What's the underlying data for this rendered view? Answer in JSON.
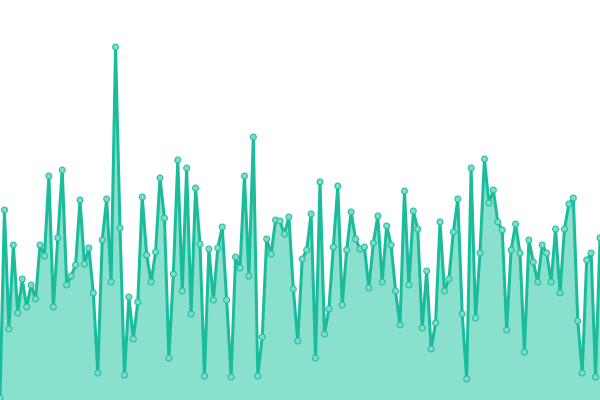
{
  "chart_data": {
    "type": "area",
    "title": "",
    "xlabel": "",
    "ylabel": "",
    "x": [
      0,
      1,
      2,
      3,
      4,
      5,
      6,
      7,
      8,
      9,
      10,
      11,
      12,
      13,
      14,
      15,
      16,
      17,
      18,
      19,
      20,
      21,
      22,
      23,
      24,
      25,
      26,
      27,
      28,
      29,
      30,
      31,
      32,
      33,
      34,
      35,
      36,
      37,
      38,
      39,
      40,
      41,
      42,
      43,
      44,
      45,
      46,
      47,
      48,
      49,
      50,
      51,
      52,
      53,
      54,
      55,
      56,
      57,
      58,
      59,
      60,
      61,
      62,
      63,
      64,
      65,
      66,
      67,
      68,
      69,
      70,
      71,
      72,
      73,
      74,
      75,
      76,
      77,
      78,
      79,
      80,
      81,
      82,
      83,
      84,
      85,
      86,
      87,
      88,
      89,
      90,
      91,
      92,
      93,
      94,
      95,
      96,
      97,
      98,
      99,
      100,
      101,
      102,
      103,
      104,
      105,
      106,
      107,
      108,
      109,
      110,
      111,
      112,
      113,
      114,
      115,
      116,
      117,
      118,
      119,
      120,
      121,
      122,
      123,
      124,
      125,
      126,
      127,
      128,
      129,
      130,
      131,
      132,
      133,
      134,
      135
    ],
    "values": [
      2,
      190,
      71,
      155,
      87,
      121,
      93,
      115,
      101,
      155,
      144,
      224,
      93,
      162,
      230,
      115,
      124,
      135,
      200,
      136,
      152,
      107,
      27,
      160,
      201,
      118,
      353,
      172,
      25,
      103,
      61,
      98,
      203,
      145,
      118,
      148,
      222,
      182,
      42,
      126,
      240,
      109,
      232,
      86,
      212,
      156,
      24,
      151,
      100,
      152,
      173,
      100,
      23,
      143,
      132,
      224,
      124,
      263,
      24,
      63,
      161,
      146,
      180,
      179,
      166,
      183,
      111,
      59,
      141,
      150,
      186,
      42,
      218,
      66,
      91,
      153,
      214,
      95,
      150,
      188,
      161,
      151,
      153,
      112,
      157,
      184,
      118,
      174,
      155,
      109,
      75,
      209,
      115,
      189,
      171,
      72,
      129,
      51,
      77,
      178,
      109,
      121,
      168,
      201,
      86,
      21,
      232,
      82,
      147,
      241,
      197,
      210,
      178,
      170,
      70,
      150,
      176,
      147,
      48,
      160,
      138,
      118,
      155,
      147,
      118,
      171,
      107,
      171,
      196,
      202,
      79,
      27,
      140,
      147,
      23,
      162
    ],
    "xlim": [
      0,
      135
    ],
    "ylim": [
      0,
      400
    ],
    "grid": false,
    "axes_visible": false,
    "colors": {
      "line": "#1abc9c",
      "fill": "#88e0cd",
      "marker_fill": "#7ddcc6",
      "marker_stroke": "#1abc9c"
    }
  }
}
